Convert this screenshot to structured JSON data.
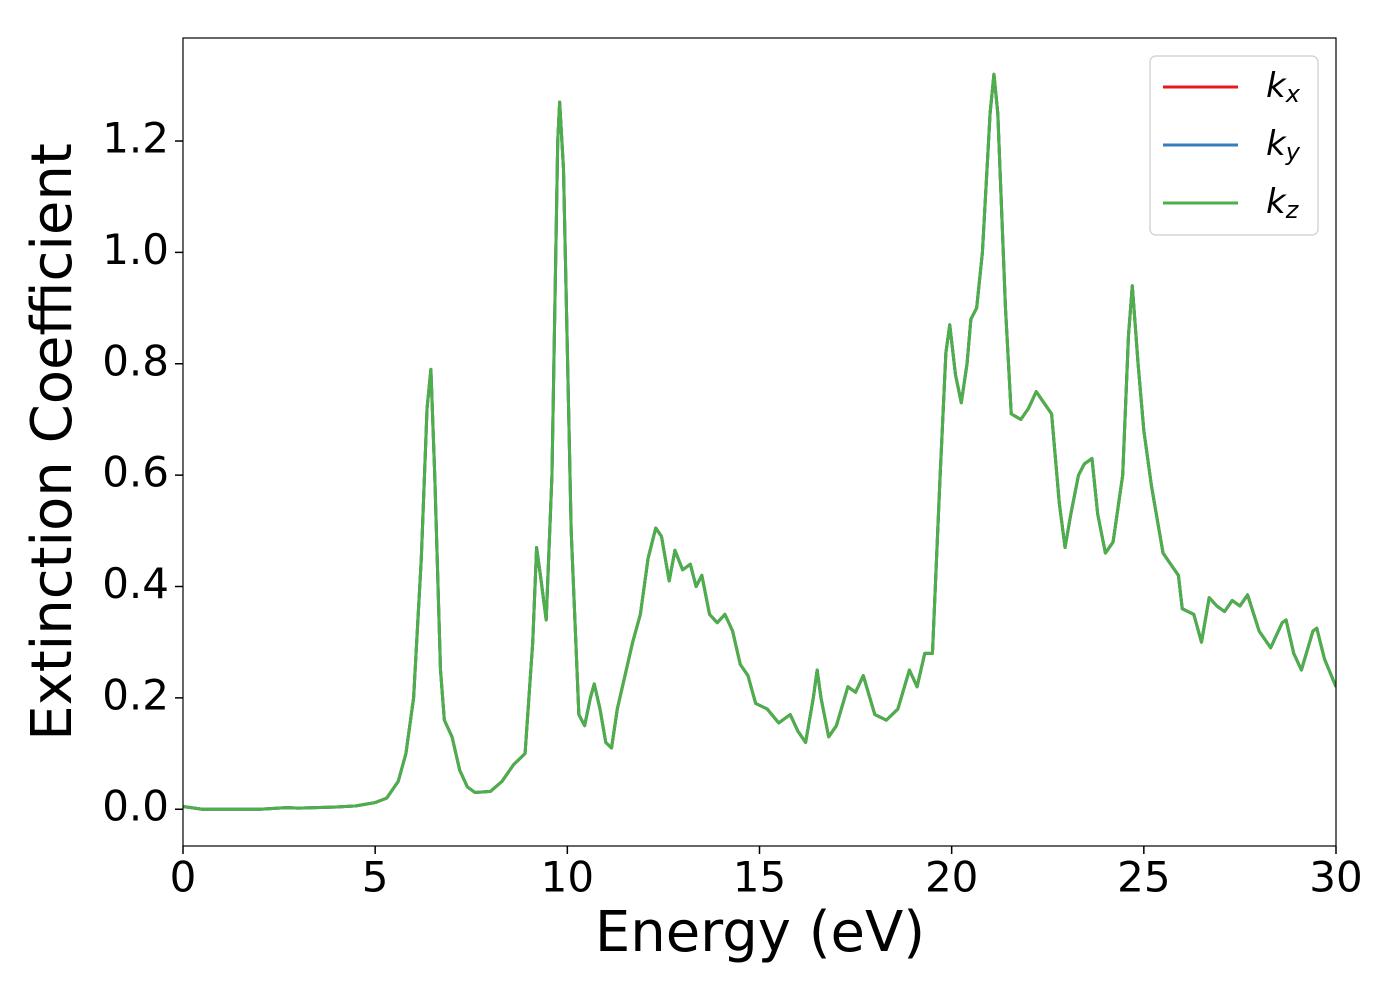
{
  "chart_data": {
    "type": "line",
    "xlabel": "Energy (eV)",
    "ylabel": "Extinction Coefficient",
    "x": [
      0,
      0.5,
      1,
      2,
      2.7,
      3,
      4,
      4.5,
      5,
      5.3,
      5.6,
      5.8,
      6.0,
      6.2,
      6.35,
      6.45,
      6.55,
      6.7,
      6.8,
      7.0,
      7.2,
      7.4,
      7.6,
      8.0,
      8.3,
      8.6,
      8.9,
      9.1,
      9.2,
      9.3,
      9.45,
      9.6,
      9.75,
      9.8,
      9.9,
      10.1,
      10.3,
      10.45,
      10.6,
      10.7,
      10.85,
      11.0,
      11.15,
      11.3,
      11.5,
      11.7,
      11.9,
      12.1,
      12.3,
      12.45,
      12.65,
      12.8,
      13.0,
      13.2,
      13.35,
      13.5,
      13.7,
      13.9,
      14.1,
      14.3,
      14.5,
      14.7,
      14.9,
      15.2,
      15.5,
      15.8,
      16.0,
      16.2,
      16.4,
      16.5,
      16.6,
      16.8,
      17.0,
      17.3,
      17.5,
      17.7,
      18.0,
      18.3,
      18.6,
      18.9,
      19.1,
      19.3,
      19.5,
      19.7,
      19.85,
      19.95,
      20.1,
      20.25,
      20.4,
      20.5,
      20.65,
      20.8,
      21.0,
      21.1,
      21.2,
      21.4,
      21.55,
      21.8,
      22.0,
      22.2,
      22.4,
      22.6,
      22.8,
      22.95,
      23.1,
      23.3,
      23.45,
      23.65,
      23.8,
      24.0,
      24.2,
      24.45,
      24.6,
      24.7,
      24.85,
      25.0,
      25.2,
      25.5,
      25.9,
      26.0,
      26.3,
      26.5,
      26.7,
      26.9,
      27.1,
      27.3,
      27.5,
      27.7,
      28.0,
      28.3,
      28.6,
      28.7,
      28.9,
      29.1,
      29.4,
      29.5,
      29.7,
      30
    ],
    "series": [
      {
        "name": "kx",
        "color": "#e41a1c",
        "values": [
          0.005,
          0.0,
          0.0,
          0.0,
          0.003,
          0.002,
          0.004,
          0.006,
          0.012,
          0.02,
          0.05,
          0.1,
          0.2,
          0.45,
          0.72,
          0.79,
          0.6,
          0.25,
          0.16,
          0.13,
          0.07,
          0.04,
          0.03,
          0.032,
          0.05,
          0.08,
          0.1,
          0.3,
          0.47,
          0.42,
          0.34,
          0.6,
          1.2,
          1.27,
          1.15,
          0.5,
          0.17,
          0.15,
          0.2,
          0.225,
          0.18,
          0.12,
          0.11,
          0.18,
          0.24,
          0.3,
          0.35,
          0.45,
          0.505,
          0.49,
          0.41,
          0.465,
          0.43,
          0.44,
          0.4,
          0.42,
          0.35,
          0.335,
          0.35,
          0.32,
          0.26,
          0.24,
          0.19,
          0.18,
          0.155,
          0.17,
          0.14,
          0.12,
          0.2,
          0.25,
          0.2,
          0.13,
          0.15,
          0.22,
          0.21,
          0.24,
          0.17,
          0.16,
          0.18,
          0.25,
          0.22,
          0.28,
          0.28,
          0.6,
          0.82,
          0.87,
          0.78,
          0.73,
          0.8,
          0.88,
          0.9,
          1.0,
          1.25,
          1.32,
          1.25,
          0.9,
          0.71,
          0.7,
          0.72,
          0.75,
          0.73,
          0.71,
          0.55,
          0.47,
          0.53,
          0.6,
          0.62,
          0.63,
          0.53,
          0.46,
          0.48,
          0.6,
          0.85,
          0.94,
          0.8,
          0.68,
          0.58,
          0.46,
          0.42,
          0.36,
          0.35,
          0.3,
          0.38,
          0.365,
          0.355,
          0.375,
          0.365,
          0.385,
          0.32,
          0.29,
          0.335,
          0.34,
          0.28,
          0.25,
          0.32,
          0.325,
          0.27,
          0.22
        ]
      },
      {
        "name": "ky",
        "color": "#377eb8",
        "values": [
          0.005,
          0.0,
          0.0,
          0.0,
          0.003,
          0.002,
          0.004,
          0.006,
          0.012,
          0.02,
          0.05,
          0.1,
          0.2,
          0.45,
          0.72,
          0.79,
          0.6,
          0.25,
          0.16,
          0.13,
          0.07,
          0.04,
          0.03,
          0.032,
          0.05,
          0.08,
          0.1,
          0.3,
          0.47,
          0.42,
          0.34,
          0.6,
          1.2,
          1.27,
          1.15,
          0.5,
          0.17,
          0.15,
          0.2,
          0.225,
          0.18,
          0.12,
          0.11,
          0.18,
          0.24,
          0.3,
          0.35,
          0.45,
          0.505,
          0.49,
          0.41,
          0.465,
          0.43,
          0.44,
          0.4,
          0.42,
          0.35,
          0.335,
          0.35,
          0.32,
          0.26,
          0.24,
          0.19,
          0.18,
          0.155,
          0.17,
          0.14,
          0.12,
          0.2,
          0.25,
          0.2,
          0.13,
          0.15,
          0.22,
          0.21,
          0.24,
          0.17,
          0.16,
          0.18,
          0.25,
          0.22,
          0.28,
          0.28,
          0.6,
          0.82,
          0.87,
          0.78,
          0.73,
          0.8,
          0.88,
          0.9,
          1.0,
          1.25,
          1.32,
          1.25,
          0.9,
          0.71,
          0.7,
          0.72,
          0.75,
          0.73,
          0.71,
          0.55,
          0.47,
          0.53,
          0.6,
          0.62,
          0.63,
          0.53,
          0.46,
          0.48,
          0.6,
          0.85,
          0.94,
          0.8,
          0.68,
          0.58,
          0.46,
          0.42,
          0.36,
          0.35,
          0.3,
          0.38,
          0.365,
          0.355,
          0.375,
          0.365,
          0.385,
          0.32,
          0.29,
          0.335,
          0.34,
          0.28,
          0.25,
          0.32,
          0.325,
          0.27,
          0.22
        ]
      },
      {
        "name": "kz",
        "color": "#4daf4a",
        "values": [
          0.005,
          0.0,
          0.0,
          0.0,
          0.003,
          0.002,
          0.004,
          0.006,
          0.012,
          0.02,
          0.05,
          0.1,
          0.2,
          0.45,
          0.72,
          0.79,
          0.6,
          0.25,
          0.16,
          0.13,
          0.07,
          0.04,
          0.03,
          0.032,
          0.05,
          0.08,
          0.1,
          0.3,
          0.47,
          0.42,
          0.34,
          0.6,
          1.2,
          1.27,
          1.15,
          0.5,
          0.17,
          0.15,
          0.2,
          0.225,
          0.18,
          0.12,
          0.11,
          0.18,
          0.24,
          0.3,
          0.35,
          0.45,
          0.505,
          0.49,
          0.41,
          0.465,
          0.43,
          0.44,
          0.4,
          0.42,
          0.35,
          0.335,
          0.35,
          0.32,
          0.26,
          0.24,
          0.19,
          0.18,
          0.155,
          0.17,
          0.14,
          0.12,
          0.2,
          0.25,
          0.2,
          0.13,
          0.15,
          0.22,
          0.21,
          0.24,
          0.17,
          0.16,
          0.18,
          0.25,
          0.22,
          0.28,
          0.28,
          0.6,
          0.82,
          0.87,
          0.78,
          0.73,
          0.8,
          0.88,
          0.9,
          1.0,
          1.25,
          1.32,
          1.25,
          0.9,
          0.71,
          0.7,
          0.72,
          0.75,
          0.73,
          0.71,
          0.55,
          0.47,
          0.53,
          0.6,
          0.62,
          0.63,
          0.53,
          0.46,
          0.48,
          0.6,
          0.85,
          0.94,
          0.8,
          0.68,
          0.58,
          0.46,
          0.42,
          0.36,
          0.35,
          0.3,
          0.38,
          0.365,
          0.355,
          0.375,
          0.365,
          0.385,
          0.32,
          0.29,
          0.335,
          0.34,
          0.28,
          0.25,
          0.32,
          0.325,
          0.27,
          0.22
        ]
      }
    ],
    "xlim": [
      0,
      30
    ],
    "xticks": [
      0,
      5,
      10,
      15,
      20,
      25,
      30
    ],
    "ylim": [
      -0.066,
      1.385
    ],
    "yticks": [
      {
        "value": 0,
        "label": "0.0"
      },
      0.2,
      0.4,
      0.6,
      0.8,
      {
        "value": 1.0,
        "label": "1.0"
      },
      1.2
    ],
    "grid": false,
    "legend": "upper right"
  }
}
